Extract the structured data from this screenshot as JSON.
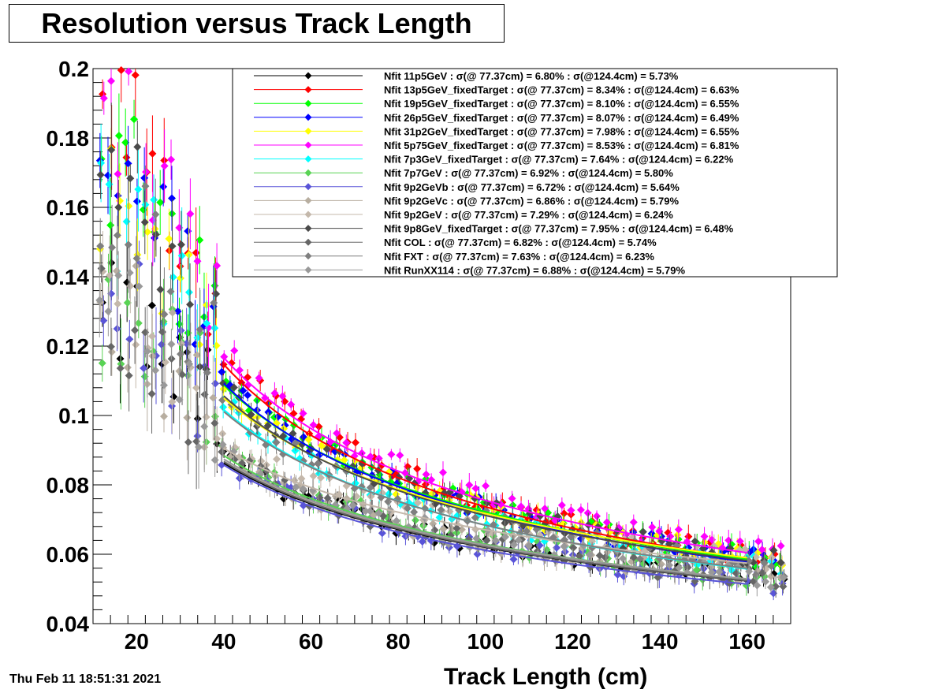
{
  "chart_data": {
    "type": "scatter",
    "title": "Resolution versus Track Length",
    "xlabel": "Track Length (cm)",
    "ylabel": "",
    "xlim": [
      10,
      170
    ],
    "ylim": [
      0.04,
      0.2
    ],
    "x_ticks": [
      20,
      40,
      60,
      80,
      100,
      120,
      140,
      160
    ],
    "y_ticks": [
      "0.04",
      "0.06",
      "0.08",
      "0.1",
      "0.12",
      "0.14",
      "0.16",
      "0.18",
      "0.2"
    ],
    "grid": true,
    "legend_position": "top-right",
    "timestamp": "Thu Feb 11 18:51:31 2021",
    "fit_range": [
      40,
      160
    ],
    "series": [
      {
        "label": "Nfit 11p5GeV : σ(@ 77.37cm) =  6.80% : σ(@124.4cm) =  5.73%",
        "color": "#000000",
        "res77": 0.068,
        "res124": 0.0573
      },
      {
        "label": "Nfit 13p5GeV_fixedTarget : σ(@ 77.37cm) =  8.34% : σ(@124.4cm) =  6.63%",
        "color": "#ff0000",
        "res77": 0.0834,
        "res124": 0.0663
      },
      {
        "label": "Nfit 19p5GeV_fixedTarget : σ(@ 77.37cm) =  8.10% : σ(@124.4cm) =  6.55%",
        "color": "#00ff00",
        "res77": 0.081,
        "res124": 0.0655
      },
      {
        "label": "Nfit 26p5GeV_fixedTarget : σ(@ 77.37cm) =  8.07% : σ(@124.4cm) =  6.49%",
        "color": "#0000ff",
        "res77": 0.0807,
        "res124": 0.0649
      },
      {
        "label": "Nfit 31p2GeV_fixedTarget : σ(@ 77.37cm) =  7.98% : σ(@124.4cm) =  6.55%",
        "color": "#ffff00",
        "res77": 0.0798,
        "res124": 0.0655
      },
      {
        "label": "Nfit 5p75GeV_fixedTarget : σ(@ 77.37cm) =  8.53% : σ(@124.4cm) =  6.81%",
        "color": "#ff00ff",
        "res77": 0.0853,
        "res124": 0.0681
      },
      {
        "label": "Nfit 7p3GeV_fixedTarget : σ(@ 77.37cm) =  7.64% : σ(@124.4cm) =  6.22%",
        "color": "#00ffff",
        "res77": 0.0764,
        "res124": 0.0622
      },
      {
        "label": "Nfit 7p7GeV : σ(@ 77.37cm) =  6.92% : σ(@124.4cm) =  5.80%",
        "color": "#59d354",
        "res77": 0.0692,
        "res124": 0.058
      },
      {
        "label": "Nfit 9p2GeVb : σ(@ 77.37cm) =  6.72% : σ(@124.4cm) =  5.64%",
        "color": "#5954d8",
        "res77": 0.0672,
        "res124": 0.0564
      },
      {
        "label": "Nfit 9p2GeVc : σ(@ 77.37cm) =  6.86% : σ(@124.4cm) =  5.79%",
        "color": "#b8aea0",
        "res77": 0.0686,
        "res124": 0.0579
      },
      {
        "label": "Nfit 9p2GeV : σ(@ 77.37cm) =  7.29% : σ(@124.4cm) =  6.24%",
        "color": "#c4b8ab",
        "res77": 0.0729,
        "res124": 0.0624
      },
      {
        "label": "Nfit 9p8GeV_fixedTarget : σ(@ 77.37cm) =  7.95% : σ(@124.4cm) =  6.48%",
        "color": "#4a4a4a",
        "res77": 0.0795,
        "res124": 0.0648
      },
      {
        "label": "Nfit COL : σ(@ 77.37cm) =  6.82% : σ(@124.4cm) =  5.74%",
        "color": "#666666",
        "res77": 0.0682,
        "res124": 0.0574
      },
      {
        "label": "Nfit FXT : σ(@ 77.37cm) =  7.63% : σ(@124.4cm) =  6.23%",
        "color": "#7f7f7f",
        "res77": 0.0763,
        "res124": 0.0623
      },
      {
        "label": "Nfit RunXX114 : σ(@ 77.37cm) =  6.88% : σ(@124.4cm) =  5.79%",
        "color": "#999999",
        "res77": 0.0688,
        "res124": 0.0579
      }
    ]
  }
}
